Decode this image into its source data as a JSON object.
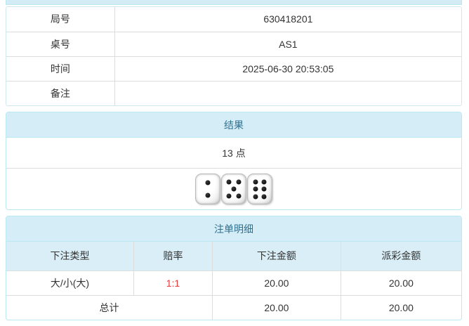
{
  "info_table": {
    "rows": [
      {
        "label": "局号",
        "value": "630418201"
      },
      {
        "label": "桌号",
        "value": "AS1"
      },
      {
        "label": "时间",
        "value": "2025-06-30 20:53:05"
      },
      {
        "label": "备注",
        "value": ""
      }
    ]
  },
  "result_panel": {
    "title": "结果",
    "points": "13 点",
    "dice": [
      2,
      5,
      6
    ]
  },
  "bets_panel": {
    "title": "注单明细",
    "columns": [
      "下注类型",
      "赔率",
      "下注金额",
      "派彩金额"
    ],
    "rows": [
      {
        "type": "大/小(大)",
        "odds": "1:1",
        "bet": "20.00",
        "payout": "20.00"
      }
    ],
    "total": {
      "label": "总计",
      "bet": "20.00",
      "payout": "20.00"
    }
  },
  "colors": {
    "panel_border": "#bce8f1",
    "heading_bg": "#d5edf6",
    "heading_text": "#31708f",
    "table_header_bg": "#d9eef7",
    "cell_border": "#dddddd",
    "odds_text": "#e4393c"
  }
}
